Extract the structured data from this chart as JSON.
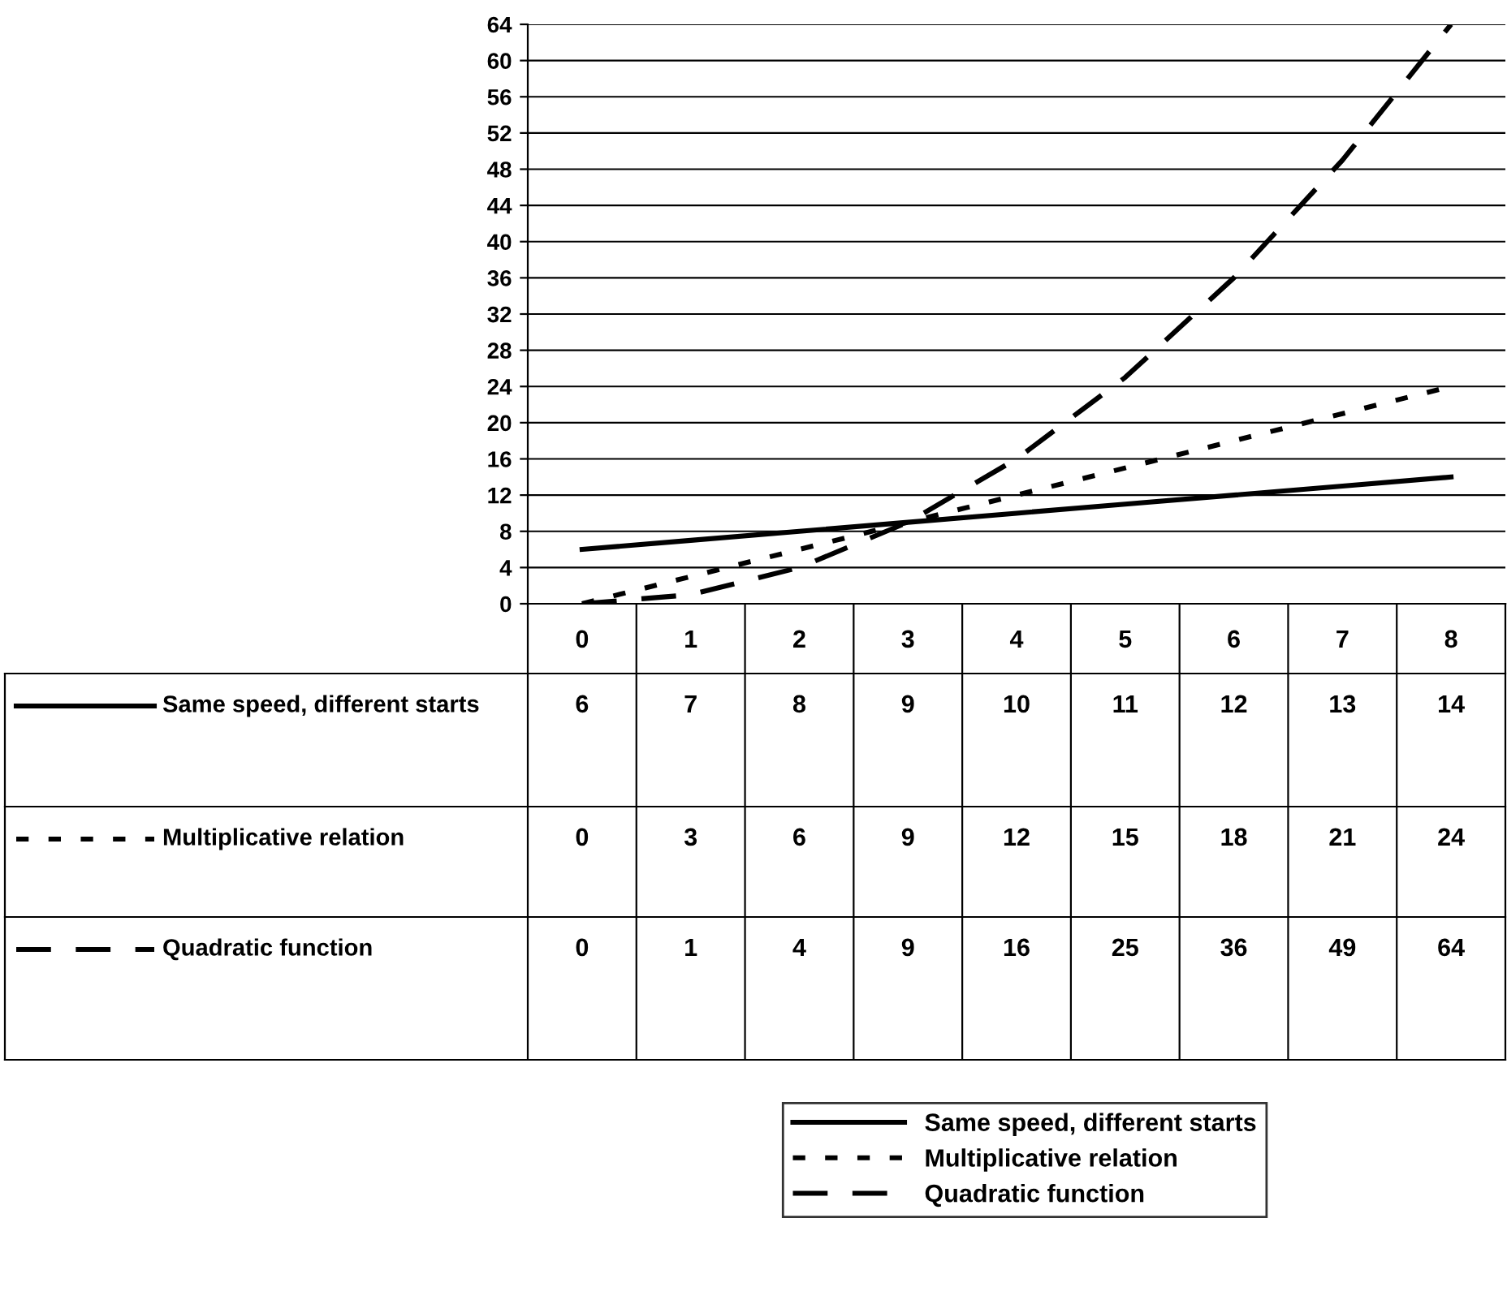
{
  "chart_data": {
    "type": "line",
    "categories": [
      "0",
      "1",
      "2",
      "3",
      "4",
      "5",
      "6",
      "7",
      "8"
    ],
    "series": [
      {
        "name": "Same speed, different starts",
        "color": "#000000",
        "line_style": "solid",
        "values": [
          6,
          7,
          8,
          9,
          10,
          11,
          12,
          13,
          14
        ]
      },
      {
        "name": "Multiplicative relation",
        "color": "#000000",
        "line_style": "dotted",
        "values": [
          0,
          3,
          6,
          9,
          12,
          15,
          18,
          21,
          24
        ]
      },
      {
        "name": "Quadratic function",
        "color": "#000000",
        "line_style": "dashed",
        "values": [
          0,
          1,
          4,
          9,
          16,
          25,
          36,
          49,
          64
        ]
      }
    ],
    "ylim": [
      0,
      64
    ],
    "yticks": [
      0,
      4,
      8,
      12,
      16,
      20,
      24,
      28,
      32,
      36,
      40,
      44,
      48,
      52,
      56,
      60,
      64
    ],
    "grid": "y",
    "legend": "bottom",
    "data_labels": true,
    "marker": "none"
  }
}
